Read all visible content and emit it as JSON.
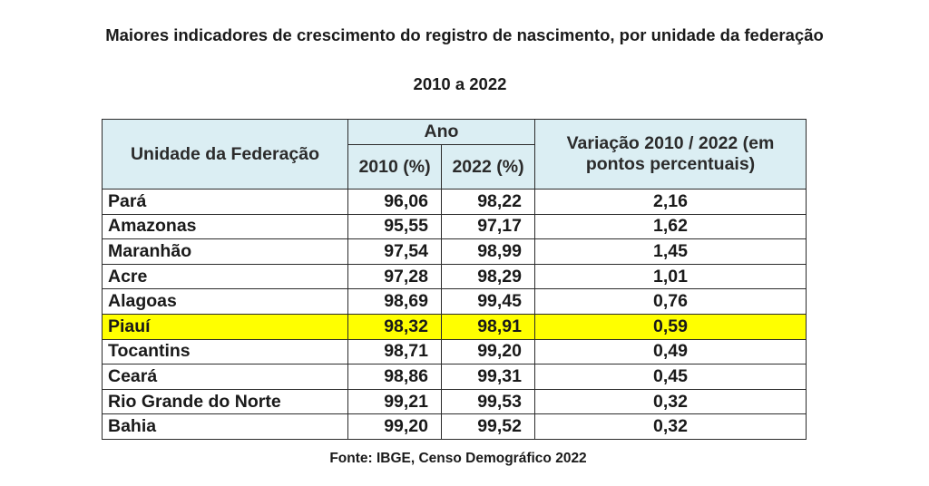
{
  "title": "Maiores indicadores de crescimento do registro de nascimento, por unidade da federação",
  "subtitle": "2010 a 2022",
  "source": "Fonte: IBGE, Censo Demográfico 2022",
  "highlight_color": "#ffff00",
  "header_bg": "#dbeef3",
  "chart_data": {
    "type": "table",
    "title": "Maiores indicadores de crescimento do registro de nascimento, por unidade da federação",
    "subtitle": "2010 a 2022",
    "headers": {
      "uf": "Unidade da Federação",
      "group": "Ano",
      "y2010": "2010 (%)",
      "y2022": "2022 (%)",
      "variation": "Variação 2010 / 2022 (em pontos percentuais)"
    },
    "highlighted_row": "Piauí",
    "rows": [
      {
        "uf": "Pará",
        "y2010": "96,06",
        "y2022": "98,22",
        "variation": "2,16"
      },
      {
        "uf": "Amazonas",
        "y2010": "95,55",
        "y2022": "97,17",
        "variation": "1,62"
      },
      {
        "uf": "Maranhão",
        "y2010": "97,54",
        "y2022": "98,99",
        "variation": "1,45"
      },
      {
        "uf": "Acre",
        "y2010": "97,28",
        "y2022": "98,29",
        "variation": "1,01"
      },
      {
        "uf": "Alagoas",
        "y2010": "98,69",
        "y2022": "99,45",
        "variation": "0,76"
      },
      {
        "uf": "Piauí",
        "y2010": "98,32",
        "y2022": "98,91",
        "variation": "0,59"
      },
      {
        "uf": "Tocantins",
        "y2010": "98,71",
        "y2022": "99,20",
        "variation": "0,49"
      },
      {
        "uf": "Ceará",
        "y2010": "98,86",
        "y2022": "99,31",
        "variation": "0,45"
      },
      {
        "uf": "Rio Grande do Norte",
        "y2010": "99,21",
        "y2022": "99,53",
        "variation": "0,32"
      },
      {
        "uf": "Bahia",
        "y2010": "99,20",
        "y2022": "99,52",
        "variation": "0,32"
      }
    ]
  }
}
